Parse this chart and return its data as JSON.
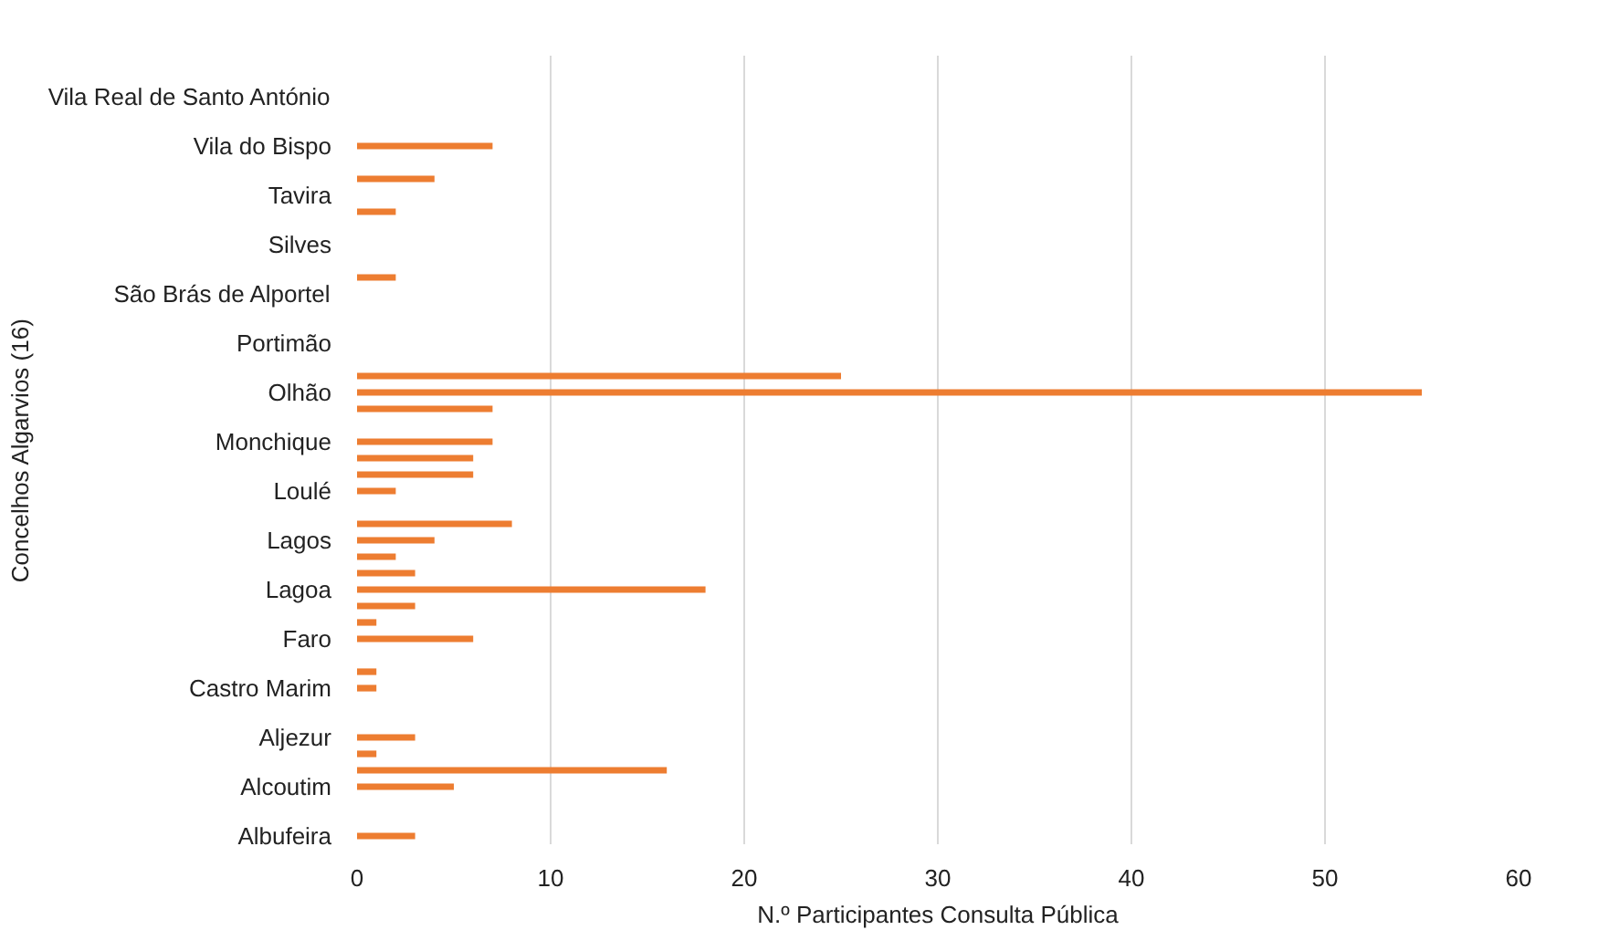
{
  "chart_data": {
    "type": "bar",
    "orientation": "horizontal",
    "xlabel": "N.º Participantes Consulta Pública",
    "ylabel": "Concelhos Algarvios (16)",
    "categories": [
      null,
      null,
      "Vila Real de Santo António",
      null,
      null,
      "Vila do Bispo",
      null,
      null,
      "Tavira",
      null,
      null,
      "Silves",
      null,
      null,
      "São Brás de Alportel",
      null,
      null,
      "Portimão",
      null,
      null,
      "Olhão",
      null,
      null,
      "Monchique",
      null,
      null,
      "Loulé",
      null,
      null,
      "Lagos",
      null,
      null,
      "Lagoa",
      null,
      null,
      "Faro",
      null,
      null,
      "Castro Marim",
      null,
      null,
      "Aljezur",
      null,
      null,
      "Alcoutim",
      null,
      null,
      "Albufeira"
    ],
    "values": [
      0,
      0,
      0,
      0,
      0,
      7,
      0,
      4,
      0,
      2,
      0,
      0,
      0,
      2,
      0,
      0,
      0,
      0,
      0,
      25,
      55,
      7,
      0,
      7,
      6,
      6,
      2,
      0,
      8,
      4,
      2,
      3,
      18,
      3,
      1,
      6,
      0,
      1,
      1,
      0,
      0,
      3,
      1,
      16,
      5,
      0,
      0,
      3
    ],
    "color": "#ed7d31",
    "xlim": [
      0,
      60
    ],
    "xticks": [
      0,
      10,
      20,
      30,
      40,
      50,
      60
    ],
    "grid": "x"
  }
}
